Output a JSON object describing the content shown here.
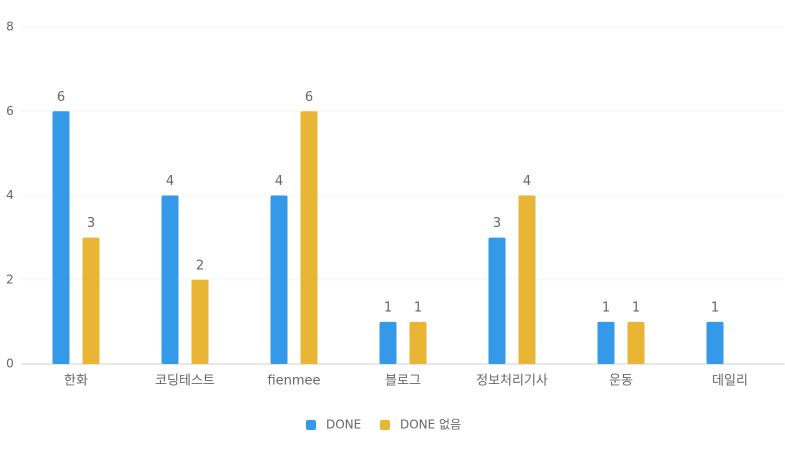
{
  "chart_data": {
    "type": "bar",
    "categories": [
      "한화",
      "코딩테스트",
      "fienmee",
      "블로그",
      "정보처리기사",
      "운동",
      "데일리"
    ],
    "series": [
      {
        "name": "DONE",
        "color": "#3399e8",
        "values": [
          6,
          4,
          4,
          1,
          3,
          1,
          1
        ]
      },
      {
        "name": "DONE 없음",
        "color": "#e8b534",
        "values": [
          3,
          2,
          6,
          1,
          4,
          1,
          null
        ]
      }
    ],
    "ylim": [
      0,
      8
    ],
    "yticks": [
      0,
      2,
      4,
      6,
      8
    ],
    "grid": true,
    "legend": "bottom"
  }
}
